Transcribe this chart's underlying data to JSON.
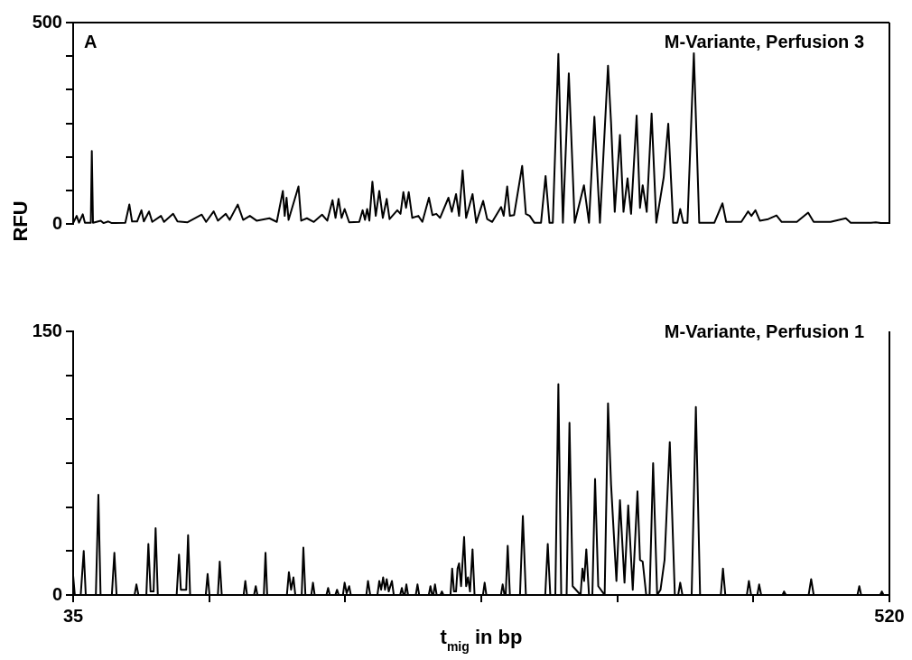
{
  "chart_data": [
    {
      "type": "line",
      "ylabel": "RFU",
      "annotations": [
        "A",
        "M-Variante, Perfusion 3"
      ],
      "xlim": [
        35,
        520
      ],
      "ylim": [
        0,
        500
      ],
      "yticks": [
        0,
        {
          "value": 83.3,
          "label": null
        },
        {
          "value": 166.7,
          "label": null
        },
        {
          "value": 250,
          "label": null
        },
        {
          "value": 333.3,
          "label": null
        },
        {
          "value": 416.7,
          "label": null
        },
        500
      ],
      "tick_labels": "y",
      "grid": false,
      "legend": false,
      "marker": "none",
      "color": "#000000",
      "x": [
        35,
        37.1,
        38.5,
        40.7,
        42,
        45.5,
        46.1,
        46.8,
        51.4,
        53,
        55.9,
        58,
        66,
        68.4,
        70,
        73,
        75.6,
        77,
        80.1,
        82,
        87.2,
        89,
        94.4,
        97,
        103,
        111.4,
        114,
        118.5,
        121,
        125.7,
        128,
        132.8,
        136,
        140,
        144,
        151.6,
        156,
        159.6,
        160.7,
        161.8,
        163,
        168.9,
        170.5,
        173.9,
        178,
        182.9,
        186,
        189.1,
        190.9,
        192.7,
        194.5,
        196.3,
        199,
        205,
        207,
        208.4,
        209.7,
        211,
        212.8,
        214.8,
        216.9,
        219,
        221.3,
        223,
        227.6,
        229.5,
        231.2,
        232.8,
        234.4,
        236.5,
        240.1,
        242.5,
        246.4,
        248.5,
        250.8,
        253,
        258,
        260,
        262.5,
        264.3,
        266.4,
        268.5,
        272.3,
        274.5,
        278.6,
        281,
        284,
        289.3,
        290.8,
        292.9,
        294.5,
        297,
        301.8,
        304,
        306.3,
        309,
        313,
        315.7,
        318,
        320,
        323.3,
        326,
        329.5,
        333,
        338.5,
        341.5,
        344.7,
        348,
        352.8,
        354.6,
        356.8,
        359.9,
        362,
        364.4,
        366.5,
        369.8,
        371.8,
        373.4,
        375.8,
        378.7,
        381.5,
        384.5,
        385.9,
        388.6,
        391.5,
        394,
        395.7,
        397.5,
        400,
        403.8,
        407,
        416,
        420.8,
        423,
        432,
        436,
        438,
        440.4,
        443,
        448,
        452.9,
        456,
        465,
        471.7,
        475,
        485,
        494.1,
        497,
        509,
        511.9,
        515,
        520
      ],
      "values": [
        2,
        20,
        3,
        24,
        3,
        3,
        181,
        3,
        8,
        2,
        6,
        2,
        3,
        48,
        6,
        6,
        34,
        6,
        31,
        5,
        20,
        5,
        25,
        6,
        4,
        23,
        5,
        31,
        8,
        25,
        10,
        48,
        10,
        20,
        8,
        14,
        5,
        82,
        20,
        65,
        10,
        93,
        8,
        14,
        5,
        23,
        8,
        59,
        15,
        62,
        15,
        37,
        4,
        5,
        34,
        10,
        37,
        8,
        105,
        20,
        82,
        15,
        62,
        12,
        34,
        25,
        79,
        40,
        79,
        15,
        20,
        5,
        65,
        22,
        25,
        15,
        65,
        30,
        74,
        20,
        133,
        15,
        74,
        3,
        57,
        12,
        5,
        42,
        20,
        93,
        20,
        22,
        144,
        25,
        20,
        3,
        3,
        119,
        3,
        3,
        422,
        3,
        374,
        3,
        96,
        3,
        266,
        3,
        393,
        252,
        30,
        221,
        30,
        113,
        25,
        269,
        40,
        96,
        30,
        274,
        3,
        80,
        116,
        249,
        3,
        3,
        37,
        3,
        3,
        424,
        3,
        3,
        51,
        5,
        5,
        31,
        20,
        34,
        8,
        12,
        21,
        5,
        5,
        28,
        5,
        5,
        14,
        3,
        3,
        4,
        2,
        2
      ]
    },
    {
      "type": "line",
      "xlabel": "t$_{mig}$ in bp",
      "annotations": [
        "M-Variante, Perfusion 1"
      ],
      "xlim": [
        35,
        520
      ],
      "xticks": [
        35,
        {
          "value": 115.8,
          "label": null
        },
        {
          "value": 196.7,
          "label": null
        },
        {
          "value": 277.5,
          "label": null
        },
        {
          "value": 358.3,
          "label": null
        },
        {
          "value": 439.2,
          "label": null
        },
        520
      ],
      "ylim": [
        0,
        150
      ],
      "yticks": [
        0,
        {
          "value": 25,
          "label": null
        },
        {
          "value": 50,
          "label": null
        },
        {
          "value": 75,
          "label": null
        },
        {
          "value": 100,
          "label": null
        },
        {
          "value": 125,
          "label": null
        },
        150
      ],
      "grid": false,
      "legend": false,
      "marker": "none",
      "color": "#000000",
      "x": [
        35,
        36,
        39.5,
        41.3,
        42.5,
        48.5,
        50,
        51.3,
        58,
        59.5,
        60.8,
        71.5,
        72.6,
        73.8,
        78.5,
        79.7,
        81,
        82.8,
        84,
        85.3,
        96.5,
        97.9,
        99,
        102.2,
        103.3,
        104.5,
        113.8,
        114.9,
        116,
        121,
        122.1,
        123.3,
        136.3,
        137.3,
        138.3,
        142.5,
        143.5,
        144.5,
        148.3,
        149.3,
        150.3,
        162,
        163.2,
        164.5,
        165.9,
        167,
        170.8,
        171.8,
        173,
        176.5,
        177.5,
        178.5,
        185.5,
        186.5,
        187.5,
        190.8,
        191.8,
        192.8,
        195.3,
        196.3,
        197.5,
        199,
        200,
        209.2,
        210.2,
        211.5,
        215.8,
        216.9,
        218,
        219.2,
        220.3,
        221.3,
        222.5,
        224.4,
        225.5,
        229.3,
        230.3,
        231.3,
        232,
        233,
        234,
        238.6,
        239.6,
        240.6,
        246.3,
        247.3,
        248.3,
        249,
        250,
        251,
        253.2,
        254.1,
        255,
        259.2,
        260.2,
        261.3,
        262.5,
        263.4,
        264.3,
        265.5,
        267.3,
        268.5,
        269.6,
        270.8,
        272.3,
        273.5,
        278.5,
        279.5,
        280.5,
        289.2,
        290.2,
        291.3,
        292,
        293.2,
        294.5,
        300.5,
        302.2,
        304,
        315.5,
        317,
        318.5,
        321.5,
        323.3,
        325,
        328.2,
        329.9,
        331.8,
        336.5,
        337.6,
        338.6,
        339.9,
        341.5,
        343.5,
        345.1,
        347,
        350.8,
        352.8,
        354.6,
        357.8,
        359.9,
        362.6,
        364.8,
        367.5,
        370.3,
        371.8,
        373.4,
        375.5,
        377.5,
        379.6,
        382,
        384,
        386.4,
        389.5,
        392.5,
        394.5,
        395.7,
        397,
        402.5,
        405,
        407.5,
        419.8,
        421.1,
        422.5,
        435.3,
        436.5,
        437.8,
        441.5,
        442.6,
        443.8,
        456.5,
        457.4,
        458.5,
        472,
        473.5,
        475,
        501,
        502.1,
        503.2,
        514.5,
        515.5,
        516.5,
        520
      ],
      "values": [
        11,
        0,
        0,
        25,
        0,
        0,
        57,
        0,
        0,
        24,
        0,
        0,
        6,
        0,
        0,
        29,
        2,
        2,
        38,
        0,
        0,
        23,
        3,
        3,
        34,
        0,
        0,
        12,
        0,
        0,
        19,
        0,
        0,
        8,
        0,
        0,
        5,
        0,
        0,
        24,
        0,
        0,
        13,
        3,
        10,
        0,
        0,
        27,
        0,
        0,
        7,
        0,
        0,
        4,
        0,
        0,
        3,
        0,
        0,
        7,
        1,
        5,
        0,
        0,
        8,
        0,
        0,
        8,
        3,
        10,
        3,
        9,
        2,
        8,
        0,
        0,
        4,
        0,
        0,
        6,
        0,
        0,
        6,
        0,
        0,
        5,
        0,
        0,
        6,
        0,
        0,
        2,
        0,
        0,
        15,
        2,
        2,
        15,
        18,
        5,
        33,
        5,
        10,
        2,
        26,
        0,
        0,
        7,
        0,
        0,
        6,
        0,
        0,
        28,
        0,
        0,
        45,
        0,
        0,
        29,
        0,
        0,
        120,
        0,
        0,
        98,
        5,
        0,
        15,
        8,
        26,
        0,
        0,
        66,
        5,
        0,
        109,
        63,
        8,
        54,
        7,
        51,
        3,
        59,
        20,
        19,
        0,
        0,
        75,
        0,
        3,
        20,
        87,
        0,
        0,
        7,
        0,
        0,
        107,
        0,
        0,
        15,
        0,
        0,
        8,
        0,
        0,
        6,
        0,
        0,
        2,
        0,
        0,
        9,
        0,
        0,
        5,
        0,
        0,
        2,
        0,
        0
      ]
    }
  ]
}
